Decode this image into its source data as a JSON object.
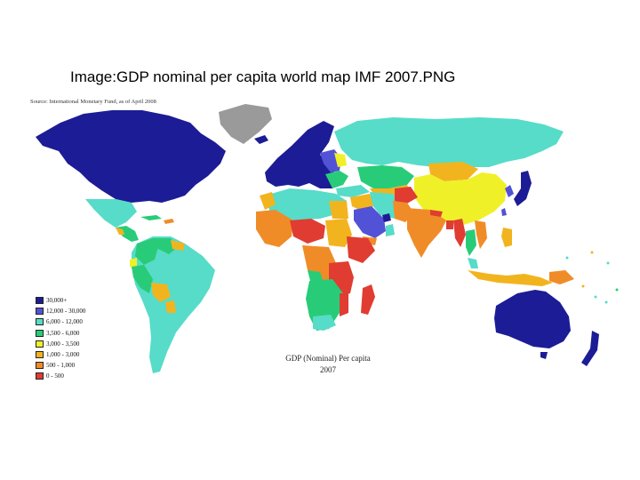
{
  "slide": {
    "title": "Image:GDP nominal per capita world map IMF 2007.PNG"
  },
  "map": {
    "source": "Source: International Monetary Fund, as of April 2008",
    "caption_line1": "GDP (Nominal) Per capita",
    "caption_line2": "2007",
    "colors": {
      "ocean": "#ffffff",
      "no_data": "#9a9a9a",
      "border": "#c8c8c8"
    },
    "legend": [
      {
        "label": "30,000+",
        "color": "#1c1c96"
      },
      {
        "label": "12,000 - 30,000",
        "color": "#5252d6"
      },
      {
        "label": "6,000 - 12,000",
        "color": "#56dcc8"
      },
      {
        "label": "3,500 - 6,000",
        "color": "#28cc78"
      },
      {
        "label": "3,000 - 3,500",
        "color": "#f0f028"
      },
      {
        "label": "1,000 - 3,000",
        "color": "#f2b41e"
      },
      {
        "label": "500 - 1,000",
        "color": "#f08c28"
      },
      {
        "label": "0 - 500",
        "color": "#e03c32"
      }
    ]
  }
}
